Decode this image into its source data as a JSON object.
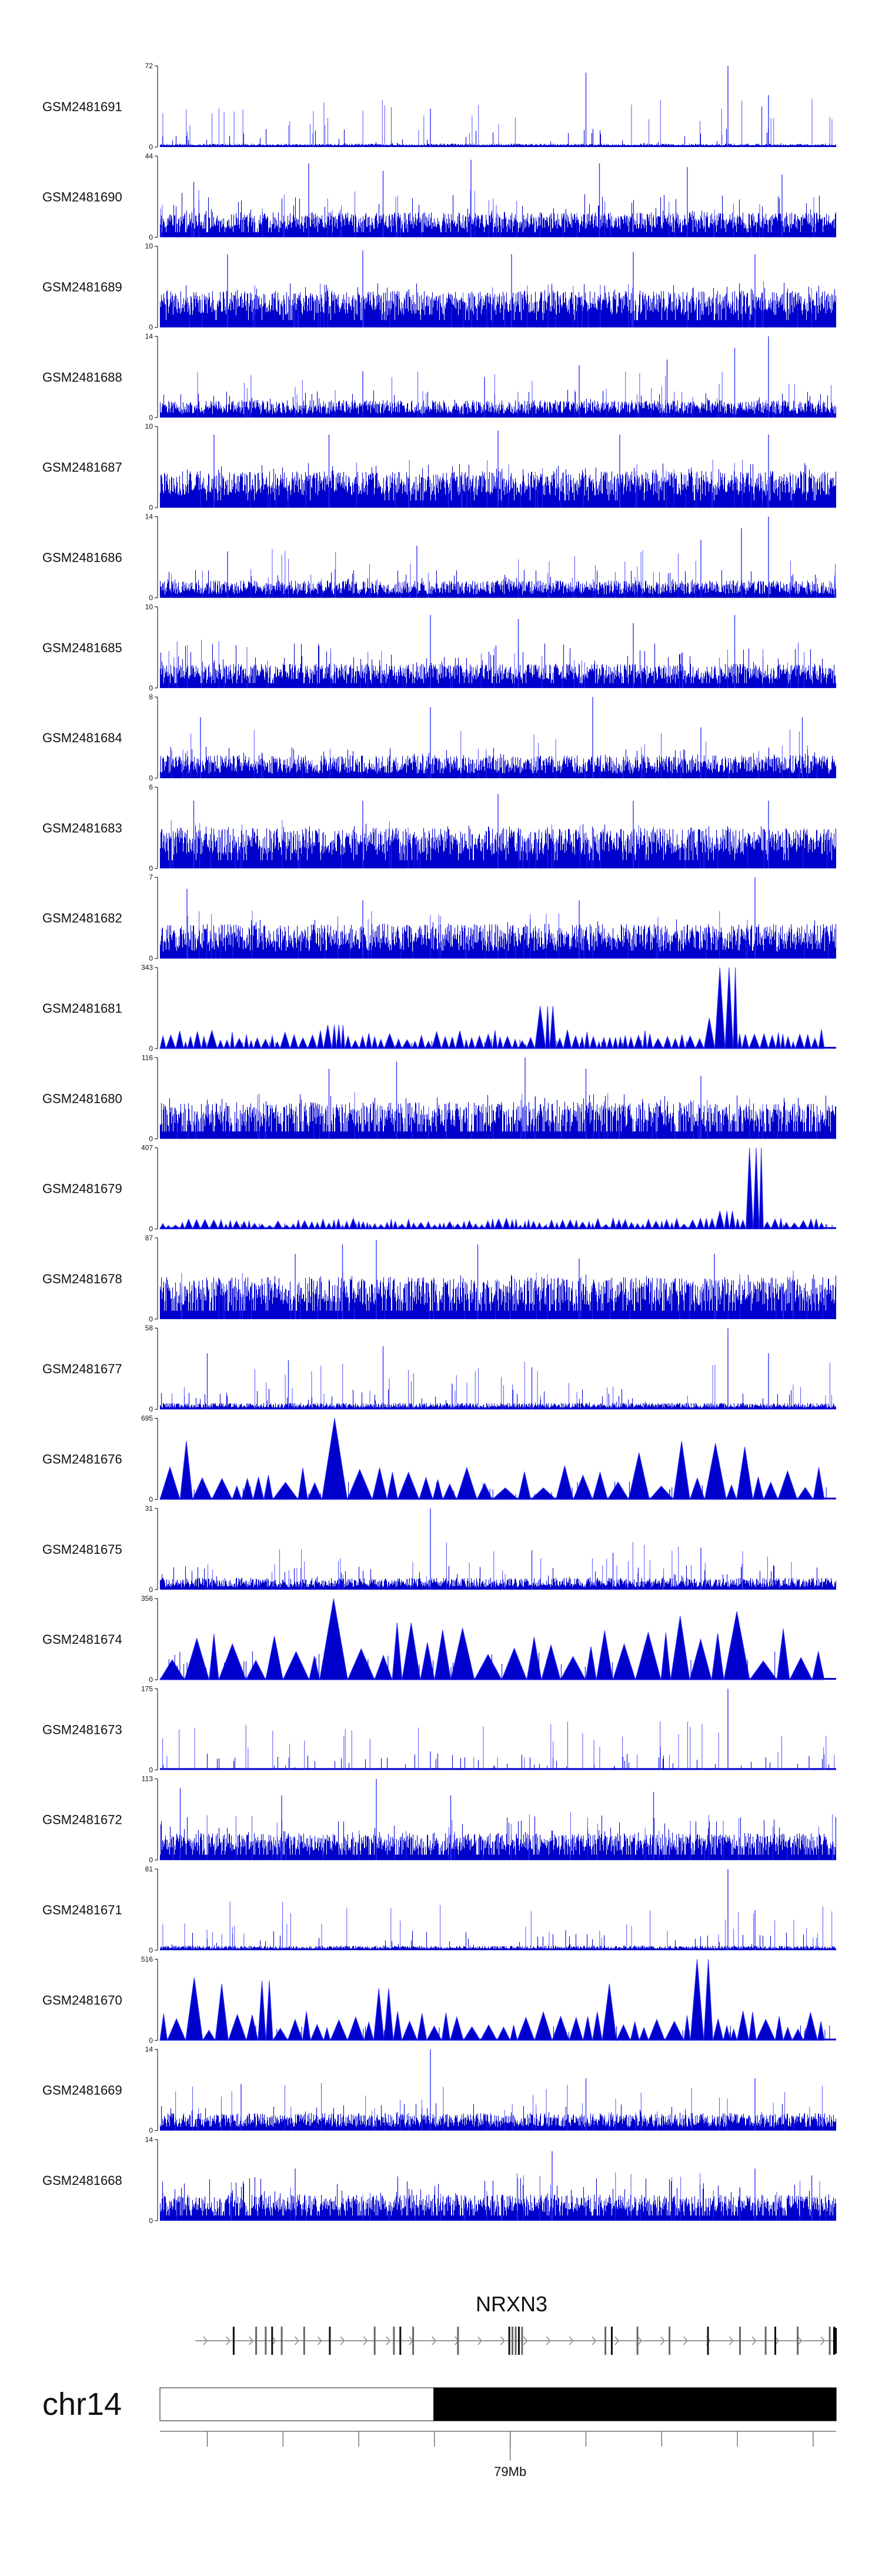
{
  "chart_data": {
    "type": "area",
    "track_color": "#0000CC",
    "track_color_light": "#3333FF",
    "axis_color": "#000000",
    "tracks": [
      {
        "name": "GSM2481691",
        "ymax": 72,
        "style": "spiky",
        "baseline": 2,
        "density": 0.55,
        "peaks": [
          [
            0.4,
            34
          ],
          [
            0.63,
            66
          ],
          [
            0.84,
            72
          ],
          [
            0.89,
            36
          ],
          [
            0.9,
            46
          ]
        ]
      },
      {
        "name": "GSM2481690",
        "ymax": 44,
        "style": "dense",
        "baseline": 9,
        "density": 0.9,
        "peaks": [
          [
            0.05,
            30
          ],
          [
            0.22,
            40
          ],
          [
            0.33,
            36
          ],
          [
            0.46,
            42
          ],
          [
            0.65,
            40
          ],
          [
            0.78,
            38
          ],
          [
            0.92,
            34
          ]
        ]
      },
      {
        "name": "GSM2481689",
        "ymax": 10,
        "style": "dense",
        "baseline": 3,
        "density": 0.95,
        "peaks": [
          [
            0.1,
            9
          ],
          [
            0.3,
            9.5
          ],
          [
            0.52,
            9
          ],
          [
            0.7,
            9.3
          ],
          [
            0.88,
            9
          ]
        ]
      },
      {
        "name": "GSM2481688",
        "ymax": 14,
        "style": "spiky",
        "baseline": 2,
        "density": 0.75,
        "peaks": [
          [
            0.3,
            8
          ],
          [
            0.48,
            7
          ],
          [
            0.62,
            9
          ],
          [
            0.75,
            10
          ],
          [
            0.85,
            12
          ],
          [
            0.9,
            14
          ]
        ]
      },
      {
        "name": "GSM2481687",
        "ymax": 10,
        "style": "dense",
        "baseline": 3,
        "density": 0.95,
        "peaks": [
          [
            0.08,
            9
          ],
          [
            0.25,
            9
          ],
          [
            0.5,
            9.5
          ],
          [
            0.68,
            9
          ],
          [
            0.9,
            9
          ]
        ]
      },
      {
        "name": "GSM2481686",
        "ymax": 14,
        "style": "spiky",
        "baseline": 2,
        "density": 0.75,
        "peaks": [
          [
            0.1,
            8
          ],
          [
            0.38,
            9
          ],
          [
            0.8,
            10
          ],
          [
            0.86,
            12
          ],
          [
            0.9,
            14
          ]
        ]
      },
      {
        "name": "GSM2481685",
        "ymax": 10,
        "style": "dense",
        "baseline": 2,
        "density": 0.9,
        "peaks": [
          [
            0.4,
            9
          ],
          [
            0.53,
            8.5
          ],
          [
            0.7,
            8
          ],
          [
            0.85,
            9
          ]
        ]
      },
      {
        "name": "GSM2481684",
        "ymax": 8,
        "style": "spiky",
        "baseline": 1.5,
        "density": 0.8,
        "peaks": [
          [
            0.06,
            6
          ],
          [
            0.4,
            7
          ],
          [
            0.64,
            8
          ],
          [
            0.8,
            5
          ],
          [
            0.95,
            6
          ]
        ]
      },
      {
        "name": "GSM2481683",
        "ymax": 6,
        "style": "dense",
        "baseline": 2,
        "density": 0.95,
        "peaks": [
          [
            0.05,
            5
          ],
          [
            0.3,
            5
          ],
          [
            0.5,
            5.5
          ],
          [
            0.7,
            5
          ],
          [
            0.9,
            5
          ]
        ]
      },
      {
        "name": "GSM2481682",
        "ymax": 7,
        "style": "spiky",
        "baseline": 2,
        "density": 0.85,
        "peaks": [
          [
            0.04,
            6
          ],
          [
            0.3,
            5
          ],
          [
            0.62,
            5
          ],
          [
            0.88,
            7
          ]
        ]
      },
      {
        "name": "GSM2481681",
        "ymax": 343,
        "style": "triangles",
        "baseline": 60,
        "count": 95,
        "peaks": [
          [
            0.26,
            100
          ],
          [
            0.57,
            180
          ],
          [
            0.84,
            343
          ],
          [
            0.82,
            130
          ]
        ]
      },
      {
        "name": "GSM2481680",
        "ymax": 116,
        "style": "dense",
        "baseline": 35,
        "density": 0.8,
        "peaks": [
          [
            0.25,
            100
          ],
          [
            0.35,
            110
          ],
          [
            0.54,
            116
          ],
          [
            0.63,
            100
          ],
          [
            0.8,
            90
          ]
        ]
      },
      {
        "name": "GSM2481679",
        "ymax": 407,
        "style": "triangles",
        "baseline": 40,
        "count": 110,
        "peaks": [
          [
            0.84,
            90
          ],
          [
            0.88,
            407
          ],
          [
            0.5,
            50
          ],
          [
            0.6,
            45
          ]
        ]
      },
      {
        "name": "GSM2481678",
        "ymax": 87,
        "style": "dense",
        "baseline": 30,
        "density": 0.85,
        "peaks": [
          [
            0.2,
            70
          ],
          [
            0.27,
            80
          ],
          [
            0.32,
            85
          ],
          [
            0.47,
            80
          ],
          [
            0.62,
            65
          ],
          [
            0.82,
            70
          ]
        ]
      },
      {
        "name": "GSM2481677",
        "ymax": 58,
        "style": "spiky",
        "baseline": 3,
        "density": 0.7,
        "peaks": [
          [
            0.07,
            40
          ],
          [
            0.19,
            35
          ],
          [
            0.33,
            45
          ],
          [
            0.55,
            30
          ],
          [
            0.84,
            58
          ],
          [
            0.9,
            40
          ]
        ]
      },
      {
        "name": "GSM2481676",
        "ymax": 695,
        "style": "triangles",
        "baseline": 220,
        "count": 40,
        "peaks": [
          [
            0.03,
            500
          ],
          [
            0.25,
            695
          ],
          [
            0.71,
            400
          ],
          [
            0.76,
            500
          ],
          [
            0.81,
            480
          ],
          [
            0.86,
            450
          ]
        ]
      },
      {
        "name": "GSM2481675",
        "ymax": 31,
        "style": "spiky",
        "baseline": 3,
        "density": 0.8,
        "peaks": [
          [
            0.4,
            31
          ],
          [
            0.55,
            15
          ],
          [
            0.67,
            14
          ],
          [
            0.8,
            16
          ]
        ]
      },
      {
        "name": "GSM2481674",
        "ymax": 356,
        "style": "triangles",
        "baseline": 180,
        "count": 34,
        "peaks": [
          [
            0.26,
            356
          ],
          [
            0.28,
            300
          ],
          [
            0.36,
            250
          ],
          [
            0.46,
            290
          ],
          [
            0.78,
            280
          ],
          [
            0.86,
            300
          ]
        ]
      },
      {
        "name": "GSM2481673",
        "ymax": 175,
        "style": "spiky",
        "baseline": 2,
        "density": 0.5,
        "peaks": [
          [
            0.4,
            40
          ],
          [
            0.74,
            50
          ],
          [
            0.84,
            175
          ],
          [
            0.96,
            30
          ]
        ]
      },
      {
        "name": "GSM2481672",
        "ymax": 113,
        "style": "dense",
        "baseline": 25,
        "density": 0.85,
        "peaks": [
          [
            0.03,
            100
          ],
          [
            0.18,
            90
          ],
          [
            0.32,
            113
          ],
          [
            0.43,
            90
          ],
          [
            0.73,
            95
          ]
        ]
      },
      {
        "name": "GSM2481671",
        "ymax": 81,
        "style": "spiky",
        "baseline": 3,
        "density": 0.65,
        "peaks": [
          [
            0.84,
            81
          ],
          [
            0.88,
            40
          ],
          [
            0.6,
            20
          ]
        ]
      },
      {
        "name": "GSM2481670",
        "ymax": 516,
        "style": "triangles",
        "baseline": 140,
        "count": 55,
        "peaks": [
          [
            0.04,
            400
          ],
          [
            0.1,
            360
          ],
          [
            0.16,
            380
          ],
          [
            0.33,
            330
          ],
          [
            0.67,
            360
          ],
          [
            0.8,
            516
          ]
        ]
      },
      {
        "name": "GSM2481669",
        "ymax": 14,
        "style": "spiky",
        "baseline": 2,
        "density": 0.8,
        "peaks": [
          [
            0.12,
            8
          ],
          [
            0.4,
            14
          ],
          [
            0.63,
            9
          ],
          [
            0.88,
            9
          ]
        ]
      },
      {
        "name": "GSM2481668",
        "ymax": 14,
        "style": "dense",
        "baseline": 3,
        "density": 0.85,
        "peaks": [
          [
            0.2,
            9
          ],
          [
            0.58,
            12
          ],
          [
            0.88,
            9
          ]
        ]
      }
    ],
    "gene": {
      "name": "NRXN3",
      "exon_positions": [
        0.06,
        0.095,
        0.11,
        0.12,
        0.135,
        0.17,
        0.21,
        0.28,
        0.31,
        0.32,
        0.34,
        0.41,
        0.49,
        0.495,
        0.5,
        0.505,
        0.51,
        0.64,
        0.65,
        0.69,
        0.74,
        0.8,
        0.85,
        0.89,
        0.905,
        0.94,
        0.99,
        0.997
      ],
      "intron_arrows": 28
    },
    "chromosome": {
      "name": "chr14",
      "band_split": 0.405,
      "tick_positions": [
        0.07,
        0.182,
        0.294,
        0.406,
        0.518,
        0.63,
        0.742,
        0.854,
        0.966
      ],
      "labeled_tick": {
        "position": 0.518,
        "label": "79Mb"
      }
    }
  }
}
